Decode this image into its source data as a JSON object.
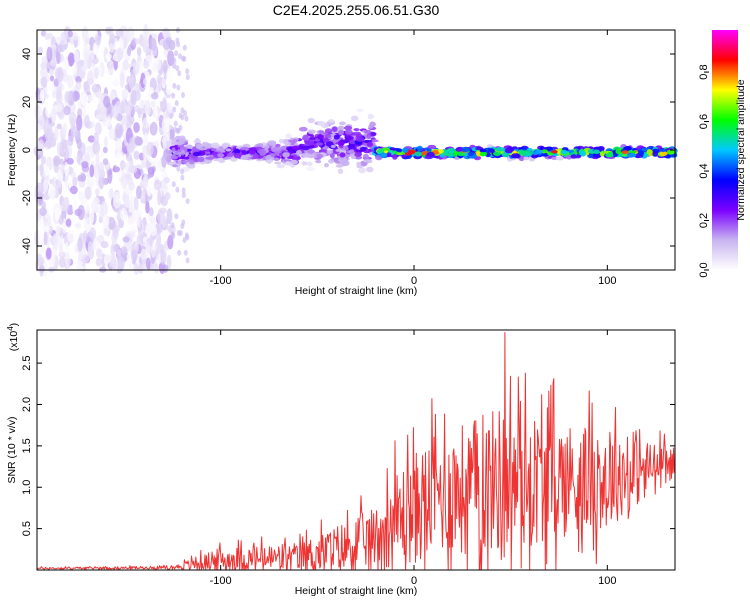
{
  "title": "C2E4.2025.255.06.51.G30",
  "chart_data": [
    {
      "type": "heatmap",
      "name": "spectrogram",
      "xlabel": "Height of straight line (km)",
      "ylabel": "Frequency (Hz)",
      "xlim": [
        -195,
        135
      ],
      "ylim": [
        -50,
        50
      ],
      "xticks": [
        -100,
        0,
        100
      ],
      "yticks": [
        -40,
        -20,
        0,
        20,
        40
      ],
      "colorbar": {
        "label": "Normalized spectral amplitude",
        "range": [
          0,
          0.97
        ],
        "ticks": [
          0.0,
          0.2,
          0.4,
          0.6,
          0.8
        ],
        "colors": [
          "#ffffff",
          "#c8b4f0",
          "#7a00ff",
          "#0000ff",
          "#00c8ff",
          "#00ff00",
          "#ffff00",
          "#ff0000",
          "#ff00ff"
        ]
      },
      "regions": [
        {
          "x": [
            -195,
            -125
          ],
          "description_values": "broadband noise",
          "amp_max": 0.15
        },
        {
          "x": [
            -125,
            -20
          ],
          "center_hz": 2,
          "spread_hz": 12,
          "amp_max": 0.35
        },
        {
          "x": [
            -20,
            135
          ],
          "center_hz": -1,
          "spread_hz": 3,
          "amp_max": 0.95
        }
      ]
    },
    {
      "type": "line",
      "name": "snr",
      "xlabel": "Height of straight line (km)",
      "ylabel": "SNR (10 * v/v)",
      "multiplier": "(x10^4)",
      "multiplier_base": "(x10",
      "multiplier_exp": "4",
      "multiplier_close": ")",
      "xlim": [
        -195,
        135
      ],
      "ylim": [
        0,
        2.9
      ],
      "xticks": [
        -100,
        0,
        100
      ],
      "yticks": [
        0.5,
        1.0,
        1.5,
        2.0,
        2.5
      ],
      "ytick_labels": [
        "0.5",
        "1.0",
        "1.5",
        "2.0",
        "2.5"
      ],
      "color": "#ee3333",
      "envelope": [
        {
          "x": -195,
          "base": 0.02,
          "amp": 0.02
        },
        {
          "x": -125,
          "base": 0.03,
          "amp": 0.03
        },
        {
          "x": -100,
          "base": 0.12,
          "amp": 0.25
        },
        {
          "x": -60,
          "base": 0.15,
          "amp": 0.3
        },
        {
          "x": -40,
          "base": 0.25,
          "amp": 0.5
        },
        {
          "x": -20,
          "base": 0.4,
          "amp": 0.6
        },
        {
          "x": -10,
          "base": 0.6,
          "amp": 1.0
        },
        {
          "x": 10,
          "base": 0.9,
          "amp": 1.2
        },
        {
          "x": 45,
          "base": 1.1,
          "amp": 1.5
        },
        {
          "x": 100,
          "base": 1.1,
          "amp": 1.0
        },
        {
          "x": 135,
          "base": 1.3,
          "amp": 0.3
        }
      ],
      "peak": {
        "x": 47,
        "y": 2.87
      }
    }
  ]
}
